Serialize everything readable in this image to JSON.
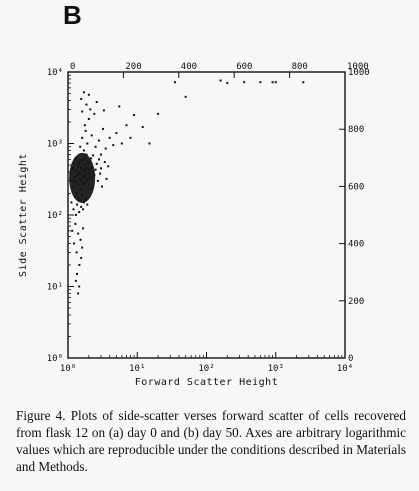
{
  "panel_label": "B",
  "caption": "Figure 4. Plots of side-scatter verses forward scatter of cells recovered from flask 12 on (a) day 0 and (b) day 50. Axes are arbitrary logarithmic values which are reproducible under the conditions described in Materials and Methods.",
  "chart_data": {
    "type": "scatter",
    "title": "",
    "xlabel": "Forward Scatter Height",
    "ylabel": "Side Scatter Height",
    "xscale": "log",
    "yscale": "log",
    "xlim": [
      1,
      10000
    ],
    "ylim": [
      1,
      10000
    ],
    "x_tick_labels": [
      "10⁰",
      "10¹",
      "10²",
      "10³",
      "10⁴"
    ],
    "y_tick_labels": [
      "10⁰",
      "10¹",
      "10²",
      "10³",
      "10⁴"
    ],
    "top_axis_labels": [
      "0",
      "200",
      "400",
      "600",
      "800",
      "1000"
    ],
    "right_axis_labels": [
      "1000",
      "800",
      "600",
      "400",
      "200",
      "0"
    ],
    "grid": false,
    "population": {
      "description": "dense cluster near x 1.3-2.5, y 100-600 with sparse scatter extending upward",
      "points": [
        [
          1.1,
          380
        ],
        [
          1.15,
          300
        ],
        [
          1.18,
          450
        ],
        [
          1.2,
          250
        ],
        [
          1.22,
          520
        ],
        [
          1.25,
          340
        ],
        [
          1.28,
          610
        ],
        [
          1.3,
          290
        ],
        [
          1.32,
          420
        ],
        [
          1.35,
          200
        ],
        [
          1.38,
          360
        ],
        [
          1.4,
          480
        ],
        [
          1.42,
          260
        ],
        [
          1.45,
          540
        ],
        [
          1.48,
          320
        ],
        [
          1.5,
          390
        ],
        [
          1.52,
          230
        ],
        [
          1.55,
          460
        ],
        [
          1.58,
          300
        ],
        [
          1.6,
          580
        ],
        [
          1.62,
          350
        ],
        [
          1.65,
          270
        ],
        [
          1.68,
          430
        ],
        [
          1.7,
          330
        ],
        [
          1.72,
          500
        ],
        [
          1.75,
          280
        ],
        [
          1.78,
          410
        ],
        [
          1.8,
          360
        ],
        [
          1.85,
          450
        ],
        [
          1.9,
          310
        ],
        [
          1.95,
          520
        ],
        [
          2.0,
          380
        ],
        [
          2.05,
          440
        ],
        [
          2.1,
          330
        ],
        [
          2.2,
          470
        ],
        [
          2.3,
          400
        ],
        [
          2.4,
          360
        ],
        [
          2.5,
          430
        ],
        [
          1.12,
          150
        ],
        [
          1.2,
          120
        ],
        [
          1.26,
          180
        ],
        [
          1.3,
          100
        ],
        [
          1.35,
          140
        ],
        [
          1.4,
          170
        ],
        [
          1.45,
          110
        ],
        [
          1.5,
          160
        ],
        [
          1.55,
          130
        ],
        [
          1.6,
          190
        ],
        [
          1.65,
          120
        ],
        [
          1.7,
          150
        ],
        [
          1.8,
          170
        ],
        [
          1.9,
          140
        ],
        [
          1.15,
          60
        ],
        [
          1.22,
          40
        ],
        [
          1.28,
          75
        ],
        [
          1.33,
          30
        ],
        [
          1.4,
          55
        ],
        [
          1.46,
          20
        ],
        [
          1.52,
          45
        ],
        [
          1.6,
          35
        ],
        [
          1.35,
          15
        ],
        [
          1.45,
          10
        ],
        [
          1.4,
          8
        ],
        [
          1.3,
          12
        ],
        [
          1.55,
          25
        ],
        [
          1.65,
          65
        ],
        [
          1.5,
          900
        ],
        [
          1.6,
          1200
        ],
        [
          1.7,
          800
        ],
        [
          1.8,
          1500
        ],
        [
          1.9,
          1000
        ],
        [
          2.0,
          2200
        ],
        [
          1.75,
          1800
        ],
        [
          2.2,
          1300
        ],
        [
          2.5,
          900
        ],
        [
          2.8,
          1100
        ],
        [
          3.0,
          700
        ],
        [
          3.2,
          1600
        ],
        [
          3.5,
          850
        ],
        [
          4.0,
          1200
        ],
        [
          4.5,
          950
        ],
        [
          5.0,
          1400
        ],
        [
          6.0,
          1000
        ],
        [
          7.0,
          1800
        ],
        [
          8.0,
          1200
        ],
        [
          9.0,
          2500
        ],
        [
          12.0,
          1700
        ],
        [
          15.0,
          1000
        ],
        [
          20.0,
          2600
        ],
        [
          1.6,
          2800
        ],
        [
          1.85,
          3500
        ],
        [
          1.55,
          4200
        ],
        [
          2.1,
          3000
        ],
        [
          2.4,
          2600
        ],
        [
          1.7,
          5200
        ],
        [
          2.0,
          4800
        ],
        [
          2.6,
          3800
        ],
        [
          3.3,
          2900
        ],
        [
          5.5,
          3300
        ],
        [
          50.0,
          4500
        ],
        [
          160,
          7600
        ],
        [
          200,
          7000
        ],
        [
          350,
          7200
        ],
        [
          600,
          7200
        ],
        [
          900,
          7200
        ],
        [
          2500,
          7200
        ],
        [
          35,
          7200
        ],
        [
          1000,
          7200
        ],
        [
          1.75,
          600
        ],
        [
          1.85,
          700
        ],
        [
          1.95,
          560
        ],
        [
          2.15,
          620
        ],
        [
          2.3,
          680
        ],
        [
          2.6,
          520
        ],
        [
          2.8,
          600
        ],
        [
          3.0,
          450
        ],
        [
          3.4,
          550
        ],
        [
          3.8,
          480
        ],
        [
          2.7,
          300
        ],
        [
          2.9,
          380
        ],
        [
          3.1,
          250
        ],
        [
          3.6,
          320
        ]
      ]
    }
  }
}
